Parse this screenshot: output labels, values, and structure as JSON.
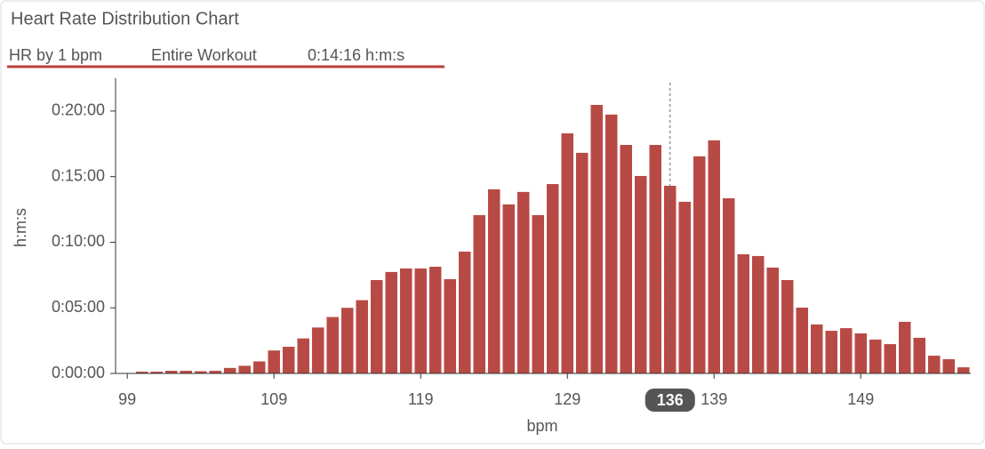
{
  "chart_data": {
    "type": "histogram",
    "title": "Heart Rate Distribution Chart",
    "subtitle": [
      "HR by 1 bpm",
      "Entire Workout",
      "0:14:16 h:m:s"
    ],
    "xlabel": "bpm",
    "ylabel": "h:m:s",
    "bins": [
      99.5,
      100.5,
      101.5,
      102.5,
      103.5,
      104.5,
      105.5,
      106.5,
      107.5,
      108.5,
      109.5,
      110.5,
      111.5,
      112.5,
      113.5,
      114.5,
      115.5,
      116.5,
      117.5,
      118.5,
      119.5,
      120.5,
      121.5,
      122.5,
      123.5,
      124.5,
      125.5,
      126.5,
      127.5,
      128.5,
      129.5,
      130.5,
      131.5,
      132.5,
      133.5,
      134.5,
      135.5,
      136.5,
      137.5,
      138.5,
      139.5,
      140.5,
      141.5,
      142.5,
      143.5,
      144.5,
      145.5,
      146.5,
      147.5,
      148.5,
      149.5,
      150.5,
      151.5,
      152.5,
      153.5,
      154.5,
      155.5,
      156.5
    ],
    "values": [
      8,
      8,
      12,
      12,
      10,
      12,
      25,
      35,
      55,
      105,
      122,
      160,
      210,
      258,
      300,
      335,
      427,
      464,
      480,
      480,
      488,
      431,
      557,
      724,
      842,
      773,
      830,
      724,
      866,
      1098,
      1009,
      1228,
      1184,
      1045,
      903,
      1045,
      858,
      785,
      993,
      1066,
      801,
      545,
      537,
      484,
      427,
      301,
      224,
      195,
      207,
      183,
      155,
      134,
      236,
      163,
      81,
      65,
      28
    ],
    "color": "#b84a45",
    "xlim": [
      98.2,
      156.5
    ],
    "xticks": [
      99,
      109,
      119,
      129,
      139,
      149
    ],
    "ylim": [
      0,
      1350
    ],
    "yticks": [
      {
        "value": 0,
        "label": "0:00:00"
      },
      {
        "value": 300,
        "label": "0:05:00"
      },
      {
        "value": 600,
        "label": "0:10:00"
      },
      {
        "value": 900,
        "label": "0:15:00"
      },
      {
        "value": 1200,
        "label": "0:20:00"
      }
    ],
    "marker": 136
  }
}
